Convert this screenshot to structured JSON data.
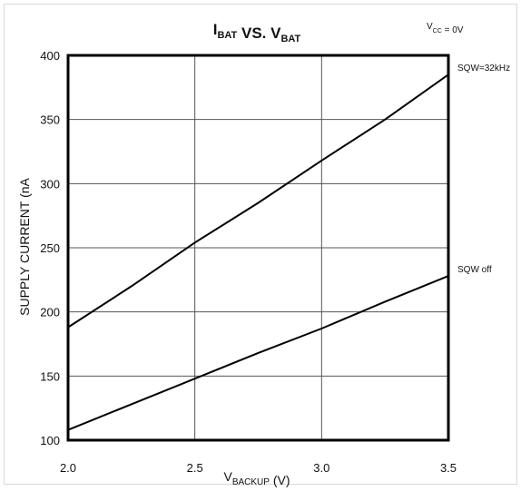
{
  "chart_data": {
    "type": "line",
    "title_parts": [
      {
        "text": "I",
        "sub": false
      },
      {
        "text": "BAT",
        "sub": true
      },
      {
        "text": " VS. V",
        "sub": false
      },
      {
        "text": "BAT",
        "sub": true
      }
    ],
    "condition_parts": [
      {
        "text": "V",
        "sub": false
      },
      {
        "text": "CC",
        "sub": true
      },
      {
        "text": " = 0V",
        "sub": false
      }
    ],
    "xlabel_parts": [
      {
        "text": "V",
        "sub": false
      },
      {
        "text": "BACKUP",
        "sub": true
      },
      {
        "text": " (V)",
        "sub": false
      }
    ],
    "ylabel": "SUPPLY CURRENT (nA",
    "xlim": [
      2.0,
      3.5
    ],
    "ylim": [
      100,
      400
    ],
    "x_ticks": [
      "2.0",
      "2.5",
      "3.0",
      "3.5"
    ],
    "y_ticks": [
      "100",
      "150",
      "200",
      "250",
      "300",
      "350",
      "400"
    ],
    "grid": true,
    "series": [
      {
        "name": "SQW=32kHz",
        "x": [
          2.0,
          2.25,
          2.5,
          2.75,
          3.0,
          3.25,
          3.5
        ],
        "y": [
          188,
          220,
          254,
          285,
          318,
          350,
          385
        ]
      },
      {
        "name": "SQW off",
        "x": [
          2.0,
          2.25,
          2.5,
          2.75,
          3.0,
          3.25,
          3.5
        ],
        "y": [
          108,
          128,
          148,
          168,
          187,
          208,
          228
        ]
      }
    ]
  }
}
